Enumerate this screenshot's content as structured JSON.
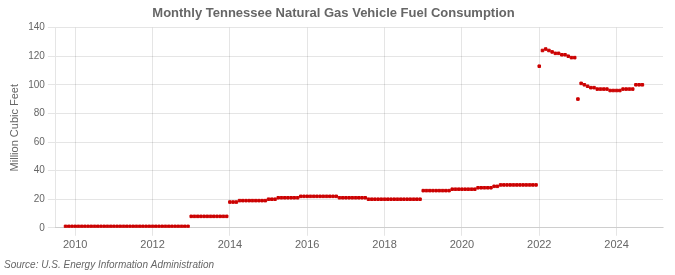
{
  "chart_data": {
    "type": "scatter",
    "title": "Monthly Tennessee Natural Gas Vehicle Fuel Consumption",
    "ylabel": "Million Cubic Feet",
    "source": "Source: U.S. Energy Information Administration",
    "color": "#cc0000",
    "marker": "square",
    "grid": true,
    "xlim": [
      2009.5,
      2025.2
    ],
    "ylim": [
      0,
      140
    ],
    "xticks": [
      2010,
      2012,
      2014,
      2016,
      2018,
      2020,
      2022,
      2024
    ],
    "yticks": [
      0,
      20,
      40,
      60,
      80,
      100,
      120,
      140
    ],
    "x": [
      2009.75,
      2009.8333333333333,
      2009.9166666666667,
      2010,
      2010.0833333333333,
      2010.1666666666667,
      2010.25,
      2010.3333333333333,
      2010.4166666666667,
      2010.5,
      2010.5833333333333,
      2010.6666666666667,
      2010.75,
      2010.8333333333333,
      2010.9166666666667,
      2011,
      2011.0833333333333,
      2011.1666666666667,
      2011.25,
      2011.3333333333333,
      2011.4166666666667,
      2011.5,
      2011.5833333333333,
      2011.6666666666667,
      2011.75,
      2011.8333333333333,
      2011.9166666666667,
      2012,
      2012.0833333333333,
      2012.1666666666667,
      2012.25,
      2012.3333333333333,
      2012.4166666666667,
      2012.5,
      2012.5833333333333,
      2012.6666666666667,
      2012.75,
      2012.8333333333333,
      2012.9166666666667,
      2013,
      2013.0833333333333,
      2013.1666666666667,
      2013.25,
      2013.3333333333333,
      2013.4166666666667,
      2013.5,
      2013.5833333333333,
      2013.6666666666667,
      2013.75,
      2013.8333333333333,
      2013.9166666666667,
      2014,
      2014.0833333333333,
      2014.1666666666667,
      2014.25,
      2014.3333333333333,
      2014.4166666666667,
      2014.5,
      2014.5833333333333,
      2014.6666666666667,
      2014.75,
      2014.8333333333333,
      2014.9166666666667,
      2015,
      2015.0833333333333,
      2015.1666666666667,
      2015.25,
      2015.3333333333333,
      2015.4166666666667,
      2015.5,
      2015.5833333333333,
      2015.6666666666667,
      2015.75,
      2015.8333333333333,
      2015.9166666666667,
      2016,
      2016.0833333333333,
      2016.1666666666667,
      2016.25,
      2016.3333333333333,
      2016.4166666666667,
      2016.5,
      2016.5833333333333,
      2016.6666666666667,
      2016.75,
      2016.8333333333333,
      2016.9166666666667,
      2017,
      2017.0833333333333,
      2017.1666666666667,
      2017.25,
      2017.3333333333333,
      2017.4166666666667,
      2017.5,
      2017.5833333333333,
      2017.6666666666667,
      2017.75,
      2017.8333333333333,
      2017.9166666666667,
      2018,
      2018.0833333333333,
      2018.1666666666667,
      2018.25,
      2018.3333333333333,
      2018.4166666666667,
      2018.5,
      2018.5833333333333,
      2018.6666666666667,
      2018.75,
      2018.8333333333333,
      2018.9166666666667,
      2019,
      2019.0833333333333,
      2019.1666666666667,
      2019.25,
      2019.3333333333333,
      2019.4166666666667,
      2019.5,
      2019.5833333333333,
      2019.6666666666667,
      2019.75,
      2019.8333333333333,
      2019.9166666666667,
      2020,
      2020.0833333333333,
      2020.1666666666667,
      2020.25,
      2020.3333333333333,
      2020.4166666666667,
      2020.5,
      2020.5833333333333,
      2020.6666666666667,
      2020.75,
      2020.8333333333333,
      2020.9166666666667,
      2021,
      2021.0833333333333,
      2021.1666666666667,
      2021.25,
      2021.3333333333333,
      2021.4166666666667,
      2021.5,
      2021.5833333333333,
      2021.6666666666667,
      2021.75,
      2021.8333333333333,
      2021.9166666666667,
      2022,
      2022.0833333333333,
      2022.1666666666667,
      2022.25,
      2022.3333333333333,
      2022.4166666666667,
      2022.5,
      2022.5833333333333,
      2022.6666666666667,
      2022.75,
      2022.8333333333333,
      2022.9166666666667,
      2023,
      2023.0833333333333,
      2023.1666666666667,
      2023.25,
      2023.3333333333333,
      2023.4166666666667,
      2023.5,
      2023.5833333333333,
      2023.6666666666667,
      2023.75,
      2023.8333333333333,
      2023.9166666666667,
      2024,
      2024.0833333333333,
      2024.1666666666667,
      2024.25,
      2024.3333333333333,
      2024.4166666666667,
      2024.5,
      2024.5833333333333,
      2024.6666666666667
    ],
    "values": [
      1,
      1,
      1,
      1,
      1,
      1,
      1,
      1,
      1,
      1,
      1,
      1,
      1,
      1,
      1,
      1,
      1,
      1,
      1,
      1,
      1,
      1,
      1,
      1,
      1,
      1,
      1,
      1,
      1,
      1,
      1,
      1,
      1,
      1,
      1,
      1,
      1,
      1,
      1,
      8,
      8,
      8,
      8,
      8,
      8,
      8,
      8,
      8,
      8,
      8,
      8,
      18,
      18,
      18,
      19,
      19,
      19,
      19,
      19,
      19,
      19,
      19,
      19,
      20,
      20,
      20,
      21,
      21,
      21,
      21,
      21,
      21,
      21,
      22,
      22,
      22,
      22,
      22,
      22,
      22,
      22,
      22,
      22,
      22,
      22,
      21,
      21,
      21,
      21,
      21,
      21,
      21,
      21,
      21,
      20,
      20,
      20,
      20,
      20,
      20,
      20,
      20,
      20,
      20,
      20,
      20,
      20,
      20,
      20,
      20,
      20,
      26,
      26,
      26,
      26,
      26,
      26,
      26,
      26,
      26,
      27,
      27,
      27,
      27,
      27,
      27,
      27,
      27,
      28,
      28,
      28,
      28,
      28,
      29,
      29,
      30,
      30,
      30,
      30,
      30,
      30,
      30,
      30,
      30,
      30,
      30,
      30,
      113,
      124,
      125,
      124,
      123,
      122,
      122,
      121,
      121,
      120,
      119,
      119,
      90,
      101,
      100,
      99,
      98,
      98,
      97,
      97,
      97,
      97,
      96,
      96,
      96,
      96,
      97,
      97,
      97,
      97,
      100,
      100,
      100
    ]
  }
}
